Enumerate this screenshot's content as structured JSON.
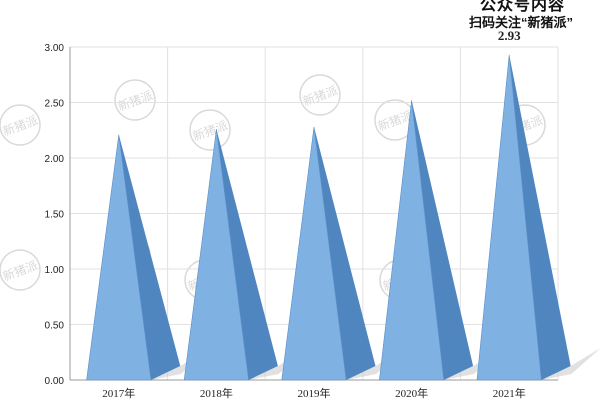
{
  "header": {
    "cut_title": "公众号内容",
    "promo": "扫码关注“新猪派”"
  },
  "watermark_text": "新猪派",
  "chart_data": {
    "type": "bar",
    "style": "3d-cone",
    "categories": [
      "2017年",
      "2018年",
      "2019年",
      "2020年",
      "2021年"
    ],
    "values": [
      2.21,
      2.26,
      2.28,
      2.52,
      2.93
    ],
    "data_labels": [
      "",
      "",
      "",
      "",
      "2.93"
    ],
    "yticks": [
      "0.00",
      "0.50",
      "1.00",
      "1.50",
      "2.00",
      "2.50",
      "3.00"
    ],
    "ylim": [
      0,
      3
    ],
    "grid": true,
    "legend": "none",
    "colors": {
      "bar_front": "#7fb1e3",
      "bar_side": "#4f86c0",
      "bar_edge": "#5b8fc7",
      "shadow": "#c8c8c8",
      "grid": "#e2e2e2",
      "axis": "#9a9a9a",
      "text": "#222222",
      "watermark": "#d9d9d9"
    }
  }
}
